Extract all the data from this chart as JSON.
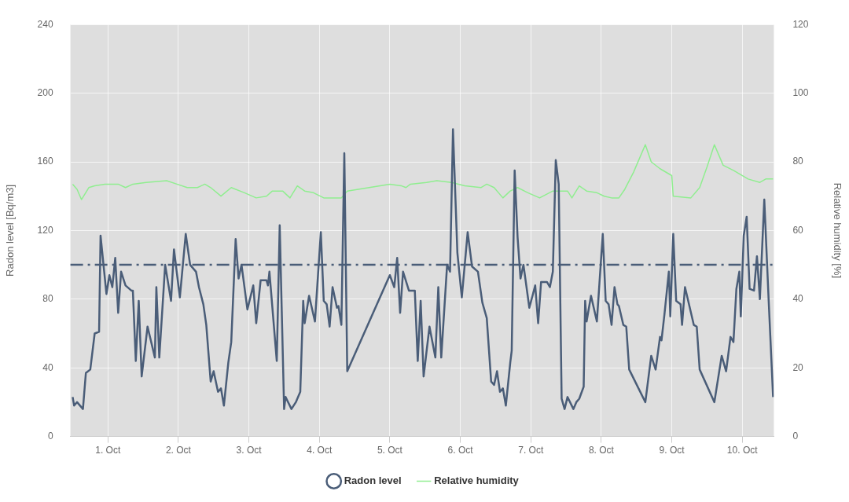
{
  "chart_data": {
    "type": "line",
    "xlim": [
      "--09-30T11:15",
      "--10-10T10:45"
    ],
    "xticks": [
      {
        "value": "--10-01",
        "label": "1. Oct"
      },
      {
        "value": "--10-02",
        "label": "2. Oct"
      },
      {
        "value": "--10-03",
        "label": "3. Oct"
      },
      {
        "value": "--10-04",
        "label": "4. Oct"
      },
      {
        "value": "--10-05",
        "label": "5. Oct"
      },
      {
        "value": "--10-06",
        "label": "6. Oct"
      },
      {
        "value": "--10-07",
        "label": "7. Oct"
      },
      {
        "value": "--10-08",
        "label": "8. Oct"
      },
      {
        "value": "--10-09",
        "label": "9. Oct"
      },
      {
        "value": "--10-10",
        "label": "10. Oct"
      }
    ],
    "ylabel": "Radon level [Bq/m3]",
    "y2label": "Relative humidity [%]",
    "ylim": [
      0,
      240
    ],
    "yticks": [
      0,
      40,
      80,
      120,
      160,
      200,
      240
    ],
    "y2lim": [
      0,
      120
    ],
    "y2ticks": [
      0,
      20,
      40,
      60,
      80,
      100,
      120
    ],
    "grid": true,
    "legend": "bottom",
    "marker": "none",
    "line_style": "solid",
    "ref_lines": [
      {
        "axis": "y",
        "value": 100,
        "color": "#4a5d78",
        "line_style": "dashed"
      }
    ],
    "series": [
      {
        "name": "Radon level",
        "color": "#4a5d78",
        "x": [
          "--09-30T12:00",
          "--09-30T12:30",
          "--09-30T13:30",
          "--09-30T15:30",
          "--09-30T16:30",
          "--09-30T18:00",
          "--09-30T19:30",
          "--09-30T21:00",
          "--09-30T21:30",
          "--09-30T23:30",
          "--10-01T00:30",
          "--10-01T01:30",
          "--10-01T02:30",
          "--10-01T03:30",
          "--10-01T04:30",
          "--10-01T06:00",
          "--10-01T08:00",
          "--10-01T08:30",
          "--10-01T09:30",
          "--10-01T10:30",
          "--10-01T11:30",
          "--10-01T13:30",
          "--10-01T16:00",
          "--10-01T16:30",
          "--10-01T17:30",
          "--10-01T19:30",
          "--10-01T21:30",
          "--10-01T22:30",
          "--10-02T00:30",
          "--10-02T02:30",
          "--10-02T04:00",
          "--10-02T06:00",
          "--10-02T07:00",
          "--10-02T08:30",
          "--10-02T09:30",
          "--10-02T11:00",
          "--10-02T12:00",
          "--10-02T13:30",
          "--10-02T14:30",
          "--10-02T15:30",
          "--10-02T17:00",
          "--10-02T18:00",
          "--10-02T19:30",
          "--10-02T20:30",
          "--10-02T21:30",
          "--10-02T23:30",
          "--10-03T01:30",
          "--10-03T02:30",
          "--10-03T04:00",
          "--10-03T06:00",
          "--10-03T06:30",
          "--10-03T07:00",
          "--10-03T09:30",
          "--10-03T10:30",
          "--10-03T12:00",
          "--10-03T12:30",
          "--10-03T14:30",
          "--10-03T16:00",
          "--10-03T17:30",
          "--10-03T18:30",
          "--10-03T19:00",
          "--10-03T20:30",
          "--10-03T22:30",
          "--10-04T00:30",
          "--10-04T01:30",
          "--10-04T02:30",
          "--10-04T03:30",
          "--10-04T04:30",
          "--10-04T06:00",
          "--10-04T06:30",
          "--10-04T07:30",
          "--10-04T08:30",
          "--10-04T09:30",
          "--10-05T00:00",
          "--10-05T01:30",
          "--10-05T02:30",
          "--10-05T03:30",
          "--10-05T04:30",
          "--10-05T06:30",
          "--10-05T08:30",
          "--10-05T09:30",
          "--10-05T10:30",
          "--10-05T11:30",
          "--10-05T13:30",
          "--10-05T15:30",
          "--10-05T16:30",
          "--10-05T17:30",
          "--10-05T19:30",
          "--10-05T20:30",
          "--10-05T21:30",
          "--10-05T23:00",
          "--10-06T00:30",
          "--10-06T02:30",
          "--10-06T04:00",
          "--10-06T06:00",
          "--10-06T07:30",
          "--10-06T09:00",
          "--10-06T10:30",
          "--10-06T11:30",
          "--10-06T12:30",
          "--10-06T13:30",
          "--10-06T14:30",
          "--10-06T15:30",
          "--10-06T17:00",
          "--10-06T17:30",
          "--10-06T18:30",
          "--10-06T19:30",
          "--10-06T20:30",
          "--10-06T21:30",
          "--10-06T23:30",
          "--10-07T01:30",
          "--10-07T02:30",
          "--10-07T03:30",
          "--10-07T05:30",
          "--10-07T06:30",
          "--10-07T07:30",
          "--10-07T08:30",
          "--10-07T09:30",
          "--10-07T10:30",
          "--10-07T11:30",
          "--10-07T12:30",
          "--10-07T14:30",
          "--10-07T15:30",
          "--10-07T16:30",
          "--10-07T18:00",
          "--10-07T18:30",
          "--10-07T19:00",
          "--10-07T20:30",
          "--10-07T22:30",
          "--10-08T00:30",
          "--10-08T01:30",
          "--10-08T02:30",
          "--10-08T03:30",
          "--10-08T04:30",
          "--10-08T05:30",
          "--10-08T06:00",
          "--10-08T07:30",
          "--10-08T08:30",
          "--10-08T09:30",
          "--10-08T15:00",
          "--10-08T17:00",
          "--10-08T18:30",
          "--10-08T20:00",
          "--10-08T20:30",
          "--10-08T21:30",
          "--10-08T23:00",
          "--10-08T23:30",
          "--10-09T00:30",
          "--10-09T01:30",
          "--10-09T03:00",
          "--10-09T03:30",
          "--10-09T04:30",
          "--10-09T06:00",
          "--10-09T07:30",
          "--10-09T08:30",
          "--10-09T09:30",
          "--10-09T14:30",
          "--10-09T17:00",
          "--10-09T18:30",
          "--10-09T20:00",
          "--10-09T21:00",
          "--10-09T22:00",
          "--10-09T23:00",
          "--10-09T23:30",
          "--10-10T00:30",
          "--10-10T01:30",
          "--10-10T02:30",
          "--10-10T04:00",
          "--10-10T05:00",
          "--10-10T06:00",
          "--10-10T07:30",
          "--10-10T09:00",
          "--10-10T10:30"
        ],
        "values": [
          23,
          18,
          20,
          16,
          37,
          39,
          60,
          61,
          117,
          83,
          94,
          87,
          104,
          72,
          96,
          88,
          85,
          85,
          44,
          79,
          35,
          64,
          46,
          87,
          46,
          100,
          79,
          109,
          81,
          118,
          100,
          96,
          87,
          77,
          65,
          32,
          38,
          26,
          28,
          18,
          43,
          55,
          115,
          92,
          100,
          74,
          88,
          66,
          91,
          91,
          88,
          96,
          44,
          123,
          16,
          23,
          16,
          20,
          26,
          79,
          66,
          82,
          67,
          119,
          79,
          77,
          64,
          87,
          75,
          76,
          65,
          165,
          38,
          94,
          87,
          104,
          72,
          96,
          85,
          85,
          44,
          79,
          35,
          64,
          46,
          87,
          46,
          100,
          96,
          179,
          107,
          81,
          119,
          99,
          96,
          78,
          69,
          32,
          30,
          38,
          26,
          28,
          18,
          43,
          50,
          155,
          116,
          92,
          100,
          75,
          88,
          66,
          90,
          90,
          87,
          96,
          161,
          147,
          22,
          16,
          23,
          16,
          20,
          22,
          29,
          79,
          67,
          82,
          67,
          118,
          79,
          77,
          65,
          87,
          77,
          76,
          65,
          64,
          39,
          20,
          47,
          39,
          58,
          56,
          71,
          96,
          70,
          118,
          79,
          77,
          65,
          87,
          76,
          65,
          64,
          39,
          20,
          47,
          38,
          58,
          55,
          86,
          96,
          70,
          117,
          128,
          86,
          85,
          105,
          80,
          138,
          79,
          23
        ]
      },
      {
        "name": "Relative humidity",
        "color": "#90ee90",
        "axis": "y2",
        "x": [
          "--09-30T12:00",
          "--09-30T13:30",
          "--09-30T15:00",
          "--09-30T17:30",
          "--09-30T19:30",
          "--09-30T23:00",
          "--10-01T03:30",
          "--10-01T06:00",
          "--10-01T08:30",
          "--10-01T13:00",
          "--10-01T20:00",
          "--10-01T23:30",
          "--10-02T03:00",
          "--10-02T06:30",
          "--10-02T09:00",
          "--10-02T11:00",
          "--10-02T14:30",
          "--10-02T18:00",
          "--10-02T22:30",
          "--10-03T02:30",
          "--10-03T06:00",
          "--10-03T08:00",
          "--10-03T11:30",
          "--10-03T14:00",
          "--10-03T16:30",
          "--10-03T19:00",
          "--10-03T22:00",
          "--10-04T01:30",
          "--10-04T07:30",
          "--10-04T09:30",
          "--10-05T00:00",
          "--10-05T04:00",
          "--10-05T05:30",
          "--10-05T07:00",
          "--10-05T12:30",
          "--10-05T16:00",
          "--10-05T21:00",
          "--10-06T01:30",
          "--10-06T07:00",
          "--10-06T09:00",
          "--10-06T11:30",
          "--10-06T14:30",
          "--10-06T17:00",
          "--10-06T19:30",
          "--10-06T23:00",
          "--10-07T03:00",
          "--10-07T07:30",
          "--10-07T10:00",
          "--10-07T12:30",
          "--10-07T14:00",
          "--10-07T16:30",
          "--10-07T19:00",
          "--10-07T22:30",
          "--10-08T01:00",
          "--10-08T03:30",
          "--10-08T06:00",
          "--10-08T08:00",
          "--10-08T11:00",
          "--10-08T15:00",
          "--10-08T17:00",
          "--10-08T20:00",
          "--10-09T00:00",
          "--10-09T00:30",
          "--10-09T06:30",
          "--10-09T09:30",
          "--10-09T12:00",
          "--10-09T14:30",
          "--10-09T17:30",
          "--10-09T21:00",
          "--10-10T02:00",
          "--10-10T06:00",
          "--10-10T08:00",
          "--10-10T10:30"
        ],
        "values": [
          73.5,
          72,
          69,
          72.5,
          73,
          73.5,
          73.5,
          72.5,
          73.5,
          74,
          74.5,
          73.5,
          72.5,
          72.5,
          73.5,
          72.5,
          70,
          72.5,
          71,
          69.5,
          70,
          71.5,
          71.5,
          69.5,
          73,
          71.5,
          71,
          69.5,
          69.5,
          71.5,
          73.5,
          73,
          72.5,
          73.5,
          74,
          74.5,
          74,
          73,
          72.5,
          73.5,
          72.5,
          69.5,
          71.5,
          72.5,
          71,
          69.5,
          71.5,
          71.5,
          71.5,
          69.5,
          73,
          71.5,
          71,
          70,
          69.5,
          69.5,
          72,
          77,
          85,
          80,
          78,
          76,
          70,
          69.5,
          72.5,
          78.5,
          85,
          79,
          77.5,
          75,
          74,
          75,
          75
        ]
      }
    ]
  }
}
